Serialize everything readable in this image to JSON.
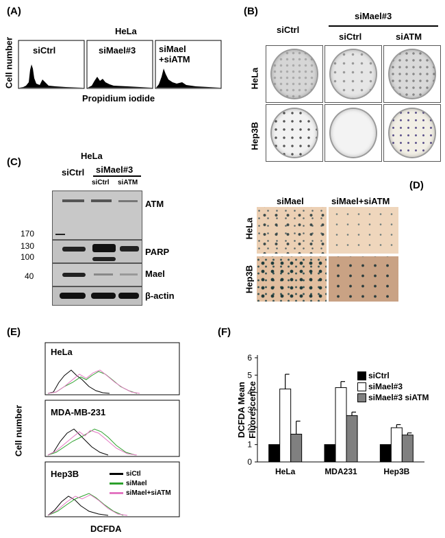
{
  "panels": {
    "A": {
      "letter": "(A)",
      "cell_line": "HeLa",
      "ylabel": "Cell number",
      "xlabel": "Propidium iodide",
      "conditions": [
        "siCtrl",
        "siMael#3",
        "siMael\n+siATM"
      ]
    },
    "B": {
      "letter": "(B)",
      "group_header": "siMael#3",
      "columns": [
        "siCtrl",
        "siCtrl",
        "siATM"
      ],
      "rows": [
        "HeLa",
        "Hep3B"
      ]
    },
    "C": {
      "letter": "(C)",
      "cell_line": "HeLa",
      "lane1": "siCtrl",
      "group_header": "siMael#3",
      "lanes": [
        "siCtrl",
        "siATM"
      ],
      "markers": [
        "170",
        "130",
        "100",
        "40"
      ],
      "proteins": [
        "ATM",
        "PARP",
        "Mael",
        "β-actin"
      ]
    },
    "D": {
      "letter": "(D)",
      "columns": [
        "siMael",
        "siMael+siATM"
      ],
      "rows": [
        "HeLa",
        "Hep3B"
      ]
    },
    "E": {
      "letter": "(E)",
      "ylabel": "Cell number",
      "xlabel": "DCFDA",
      "plots": [
        "HeLa",
        "MDA-MB-231",
        "Hep3B"
      ],
      "legend": [
        "siCtl",
        "siMael",
        "siMael+siATM"
      ],
      "colors": {
        "siCtl": "#000000",
        "siMael": "#2ca02c",
        "siMael+siATM": "#e377c2"
      }
    },
    "F": {
      "letter": "(F)"
    }
  },
  "chart_data": {
    "type": "bar",
    "title": "",
    "ylabel": "DCFDA Mean\nFluorescence",
    "xlabel": "",
    "categories": [
      "HeLa",
      "MDA231",
      "Hep3B"
    ],
    "ylim": [
      0,
      6
    ],
    "yticks": [
      0,
      1,
      2,
      3,
      4,
      5,
      6
    ],
    "legend_position": "right",
    "series": [
      {
        "name": "siCtrl",
        "color": "#000000",
        "values": [
          1,
          1,
          1
        ],
        "errors": [
          0,
          0,
          0
        ]
      },
      {
        "name": "siMael#3",
        "color": "#ffffff",
        "values": [
          4.2,
          4.28,
          1.97
        ],
        "errors": [
          0.85,
          0.35,
          0.18
        ]
      },
      {
        "name": "siMael#3 siATM",
        "color": "#808080",
        "values": [
          1.6,
          2.67,
          1.55
        ],
        "errors": [
          0.75,
          0.2,
          0.12
        ]
      }
    ]
  }
}
